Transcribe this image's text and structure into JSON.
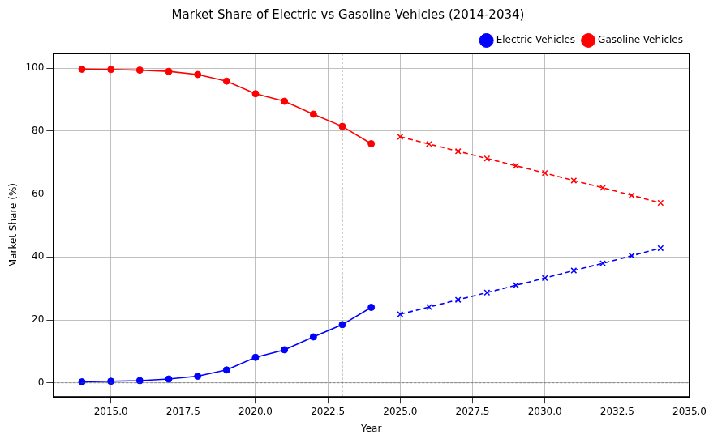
{
  "chart_data": {
    "type": "line",
    "title": "Market Share of Electric vs Gasoline Vehicles (2014-2034)",
    "x_label": "Year",
    "y_label": "Market Share (%)",
    "xlim": [
      2013,
      2035
    ],
    "xticks": [
      {
        "value": 2015,
        "label": "2015.0"
      },
      {
        "value": 2017.5,
        "label": "2017.5"
      },
      {
        "value": 2020,
        "label": "2020.0"
      },
      {
        "value": 2022.5,
        "label": "2022.5"
      },
      {
        "value": 2025,
        "label": "2025.0"
      },
      {
        "value": 2027.5,
        "label": "2027.5"
      },
      {
        "value": 2030,
        "label": "2030.0"
      },
      {
        "value": 2032.5,
        "label": "2032.5"
      },
      {
        "value": 2035,
        "label": "2035.0"
      }
    ],
    "ylim": [
      -4.5,
      104.7
    ],
    "yticks": [
      0,
      20,
      40,
      60,
      80,
      100
    ],
    "grid": true,
    "legend": "upper right",
    "reference_lines": {
      "x": [
        2023
      ],
      "y": [
        0
      ]
    },
    "series": [
      {
        "name": "Electric Vehicles",
        "color": "blue",
        "marker": "circle",
        "line_style": "solid",
        "x": [
          2014,
          2015,
          2016,
          2017,
          2018,
          2019,
          2020,
          2021,
          2022,
          2023,
          2024
        ],
        "values": [
          0.3,
          0.5,
          0.7,
          1.2,
          2.1,
          4.1,
          8.1,
          10.5,
          14.6,
          18.5,
          24.0
        ]
      },
      {
        "name": "Gasoline Vehicles",
        "color": "red",
        "marker": "circle",
        "line_style": "solid",
        "x": [
          2014,
          2015,
          2016,
          2017,
          2018,
          2019,
          2020,
          2021,
          2022,
          2023,
          2024
        ],
        "values": [
          99.7,
          99.6,
          99.4,
          99.0,
          98.0,
          95.9,
          91.9,
          89.5,
          85.4,
          81.5,
          76.0
        ]
      },
      {
        "color": "red",
        "marker": "x",
        "line_style": "dashed",
        "x": [
          2025,
          2026,
          2027,
          2028,
          2029,
          2030,
          2031,
          2032,
          2033,
          2034
        ],
        "values": [
          78.2,
          75.9,
          73.6,
          71.3,
          69.0,
          66.7,
          64.3,
          62.0,
          59.6,
          57.2
        ]
      },
      {
        "color": "blue",
        "marker": "x",
        "line_style": "dashed",
        "x": [
          2025,
          2026,
          2027,
          2028,
          2029,
          2030,
          2031,
          2032,
          2033,
          2034
        ],
        "values": [
          21.8,
          24.1,
          26.4,
          28.7,
          31.0,
          33.3,
          35.7,
          38.0,
          40.4,
          42.8
        ]
      }
    ]
  }
}
